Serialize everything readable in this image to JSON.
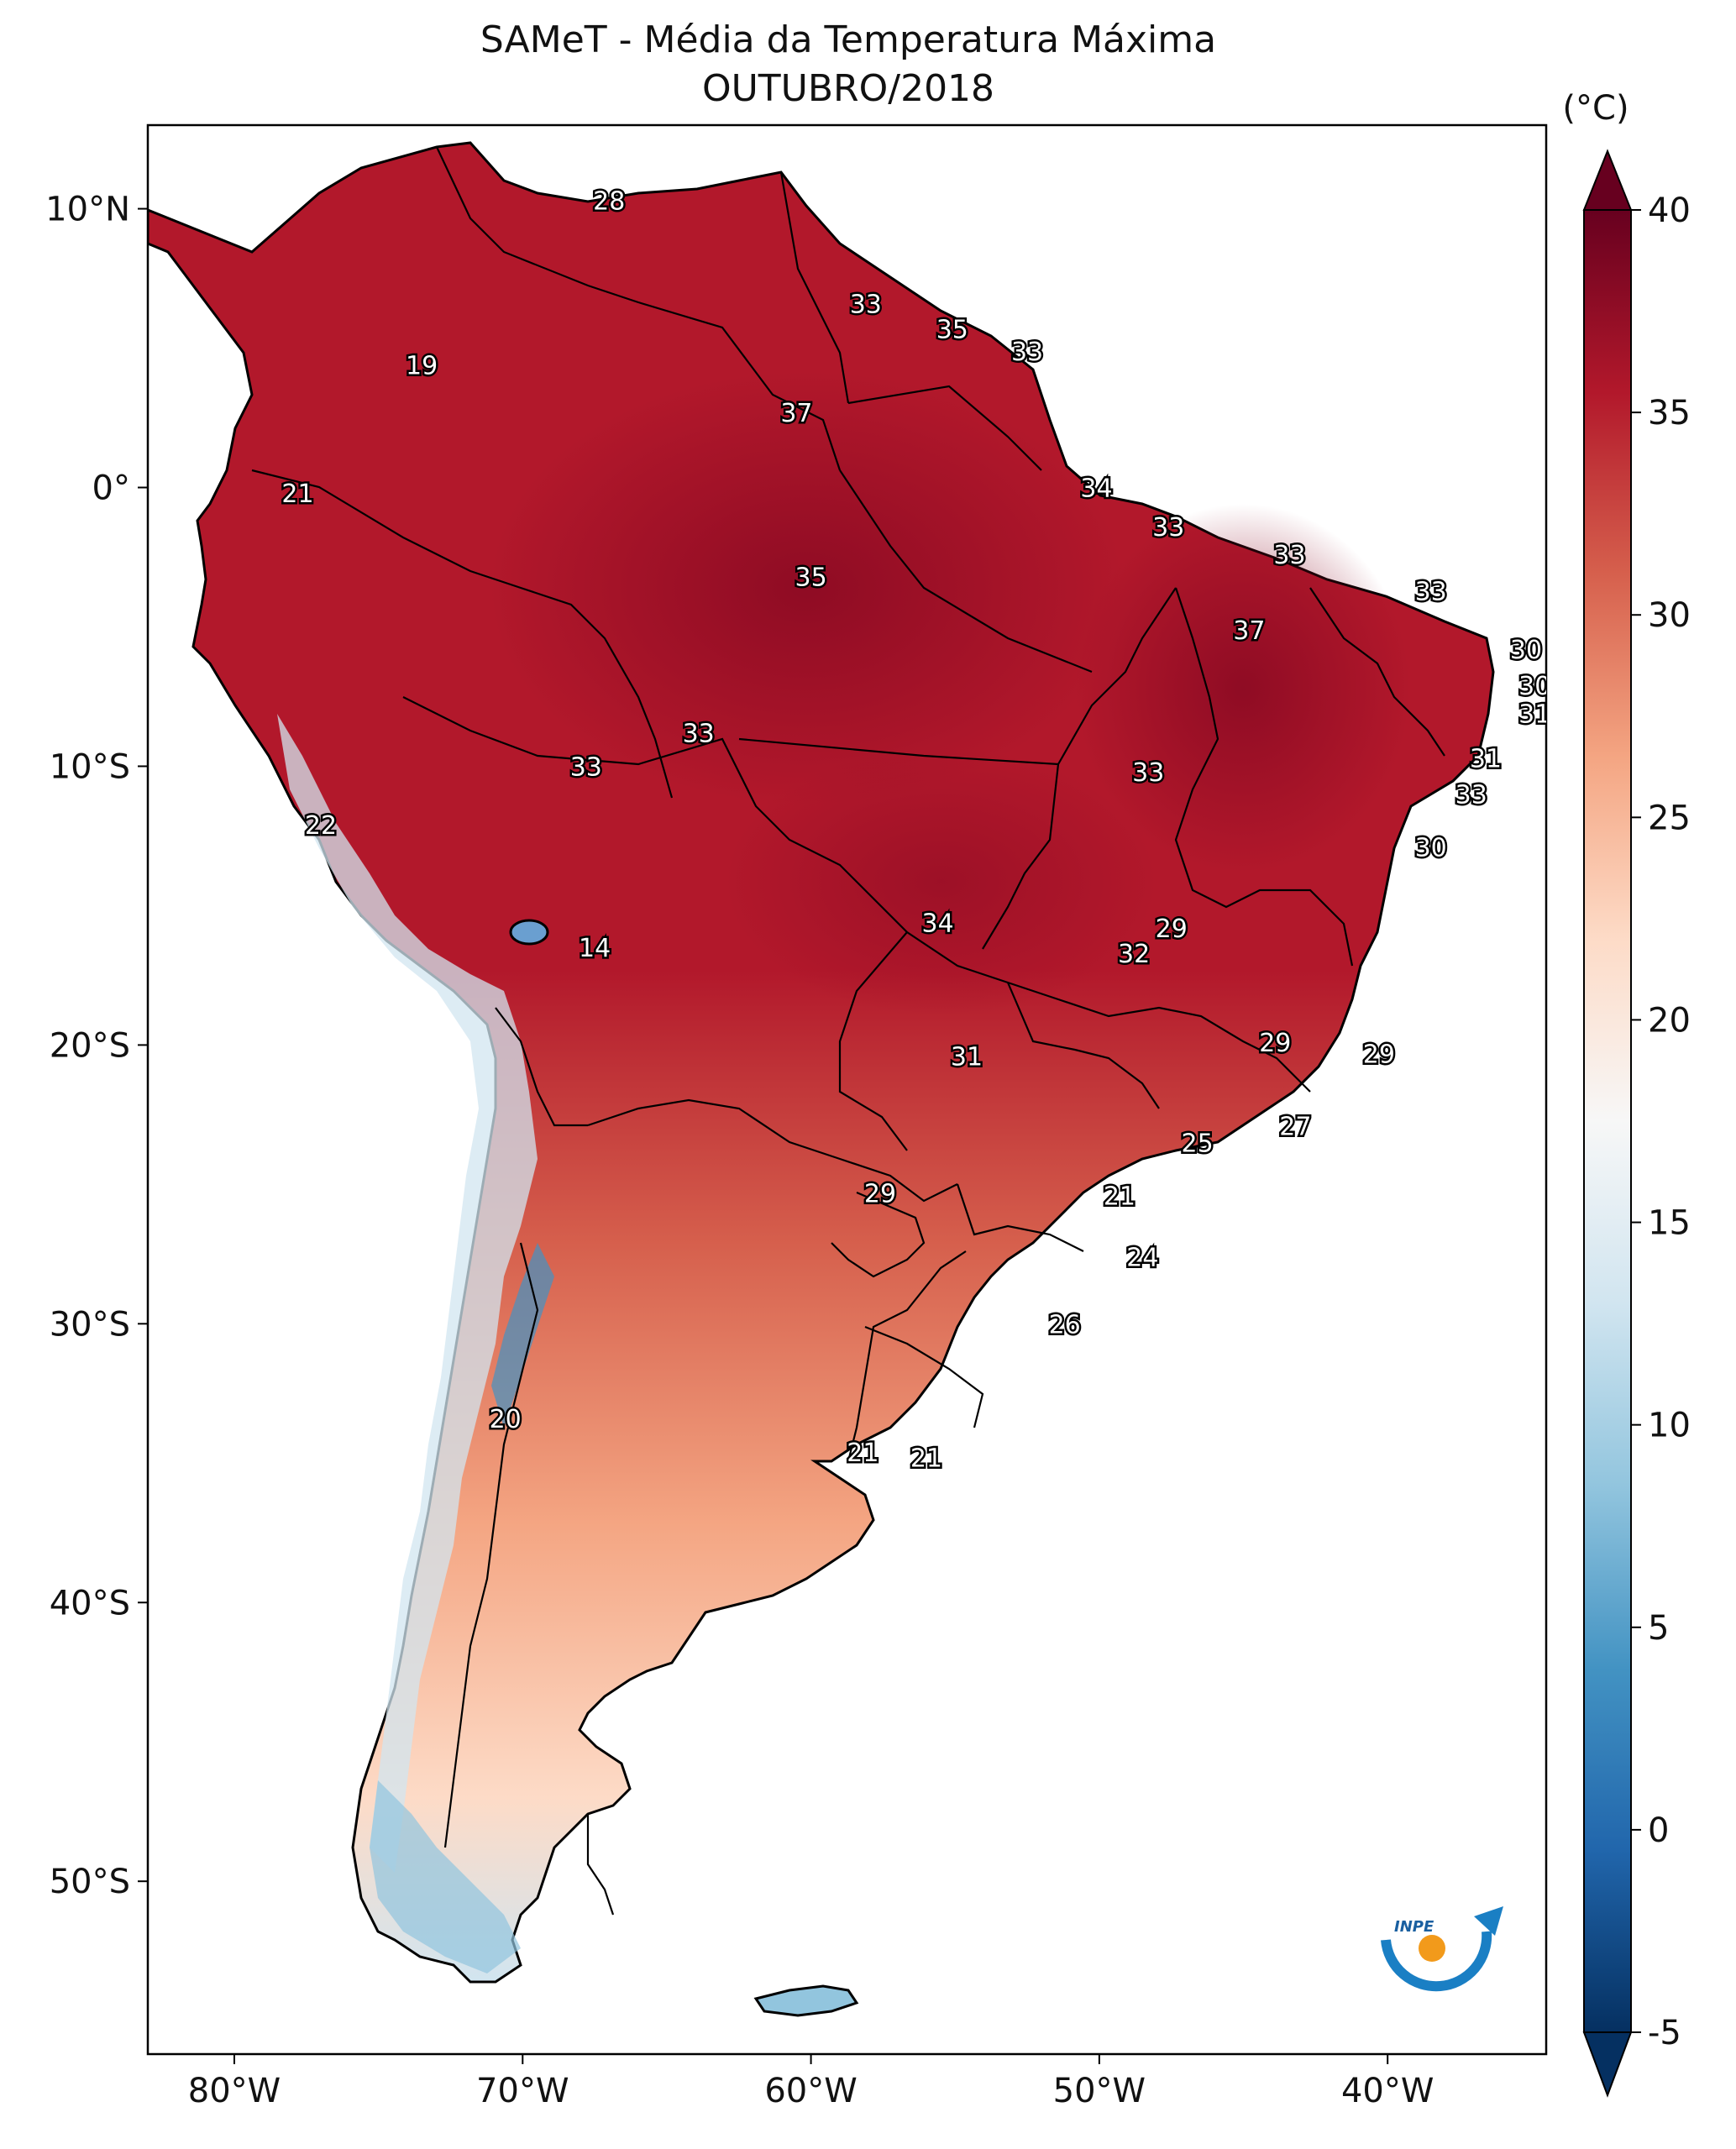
{
  "title": "SAMeT - Média da Temperatura Máxima",
  "subtitle": "OUTUBRO/2018",
  "colorbar": {
    "unit": "(°C)",
    "ticks": [
      "40",
      "35",
      "30",
      "25",
      "20",
      "15",
      "10",
      "5",
      "0",
      "-5"
    ],
    "colormap": [
      "#053061",
      "#2166ac",
      "#4393c3",
      "#92c5de",
      "#d1e5f0",
      "#f7f7f7",
      "#fddbc7",
      "#f4a582",
      "#d6604d",
      "#b2182b",
      "#67001f"
    ]
  },
  "axes": {
    "lat_labels": [
      "10°N",
      "0°",
      "10°S",
      "20°S",
      "30°S",
      "40°S",
      "50°S"
    ],
    "lon_labels": [
      "80°W",
      "70°W",
      "60°W",
      "50°W",
      "40°W"
    ]
  },
  "station_labels": [
    {
      "text": "28",
      "lon": -67.0,
      "lat": 10.3
    },
    {
      "text": "19",
      "lon": -73.5,
      "lat": 4.4
    },
    {
      "text": "33",
      "lon": -58.1,
      "lat": 6.6
    },
    {
      "text": "35",
      "lon": -55.1,
      "lat": 5.7
    },
    {
      "text": "33",
      "lon": -52.5,
      "lat": 4.9
    },
    {
      "text": "37",
      "lon": -60.5,
      "lat": 2.7
    },
    {
      "text": "21",
      "lon": -77.8,
      "lat": -0.2
    },
    {
      "text": "34",
      "lon": -50.1,
      "lat": 0.0
    },
    {
      "text": "33",
      "lon": -47.6,
      "lat": -1.4
    },
    {
      "text": "33",
      "lon": -43.4,
      "lat": -2.4
    },
    {
      "text": "35",
      "lon": -60.0,
      "lat": -3.2
    },
    {
      "text": "33",
      "lon": -38.5,
      "lat": -3.7
    },
    {
      "text": "37",
      "lon": -44.8,
      "lat": -5.1
    },
    {
      "text": "30",
      "lon": -35.2,
      "lat": -5.8
    },
    {
      "text": "30",
      "lon": -34.9,
      "lat": -7.1
    },
    {
      "text": "31",
      "lon": -34.9,
      "lat": -8.1
    },
    {
      "text": "33",
      "lon": -63.9,
      "lat": -8.8
    },
    {
      "text": "33",
      "lon": -67.8,
      "lat": -10.0
    },
    {
      "text": "31",
      "lon": -36.6,
      "lat": -9.7
    },
    {
      "text": "33",
      "lon": -48.3,
      "lat": -10.2
    },
    {
      "text": "33",
      "lon": -37.1,
      "lat": -11.0
    },
    {
      "text": "22",
      "lon": -77.0,
      "lat": -12.1
    },
    {
      "text": "30",
      "lon": -38.5,
      "lat": -12.9
    },
    {
      "text": "14",
      "lon": -67.5,
      "lat": -16.5
    },
    {
      "text": "34",
      "lon": -55.6,
      "lat": -15.6
    },
    {
      "text": "29",
      "lon": -47.5,
      "lat": -15.8
    },
    {
      "text": "32",
      "lon": -48.8,
      "lat": -16.7
    },
    {
      "text": "29",
      "lon": -43.9,
      "lat": -19.9
    },
    {
      "text": "29",
      "lon": -40.3,
      "lat": -20.3
    },
    {
      "text": "31",
      "lon": -54.6,
      "lat": -20.4
    },
    {
      "text": "27",
      "lon": -43.2,
      "lat": -22.9
    },
    {
      "text": "25",
      "lon": -46.6,
      "lat": -23.5
    },
    {
      "text": "29",
      "lon": -57.6,
      "lat": -25.3
    },
    {
      "text": "21",
      "lon": -49.3,
      "lat": -25.4
    },
    {
      "text": "24",
      "lon": -48.5,
      "lat": -27.6
    },
    {
      "text": "26",
      "lon": -51.2,
      "lat": -30.0
    },
    {
      "text": "20",
      "lon": -70.6,
      "lat": -33.4
    },
    {
      "text": "21",
      "lon": -58.2,
      "lat": -34.6
    },
    {
      "text": "21",
      "lon": -56.0,
      "lat": -34.8
    }
  ],
  "logo": {
    "text": "INPE"
  }
}
